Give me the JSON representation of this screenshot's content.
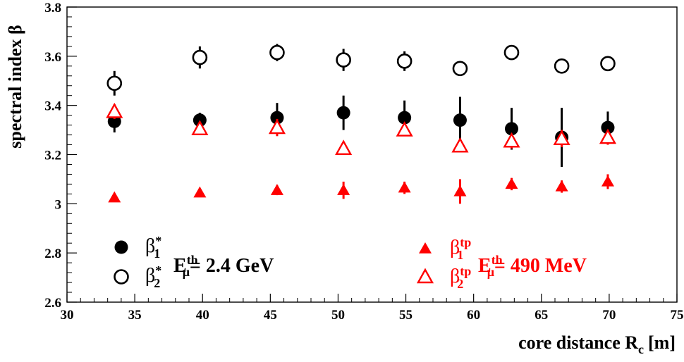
{
  "chart_data": {
    "type": "scatter",
    "xlabel": "core distance R",
    "xlabel_sub": "c",
    "xlabel_unit": "[m]",
    "ylabel": "spectral index β",
    "xlim": [
      30,
      75
    ],
    "ylim": [
      2.6,
      3.8
    ],
    "x_ticks": [
      30,
      35,
      40,
      45,
      50,
      55,
      60,
      65,
      70,
      75
    ],
    "y_ticks": [
      2.6,
      2.8,
      3,
      3.2,
      3.4,
      3.6,
      3.8
    ],
    "y_tick_labels": [
      "2.6",
      "2.8",
      "3",
      "3.2",
      "3.4",
      "3.6",
      "3.8"
    ],
    "grid": false,
    "legend_placement": "bottom",
    "colors": {
      "black": "#000000",
      "red": "#ff0000"
    },
    "series": [
      {
        "sym": "β",
        "sup": "*",
        "sub": "1",
        "marker": "filled-circle",
        "color": "#000000",
        "points": [
          {
            "x": 33.5,
            "y": 3.335,
            "err": 0.045
          },
          {
            "x": 39.8,
            "y": 3.34,
            "err": 0.03
          },
          {
            "x": 45.5,
            "y": 3.35,
            "err": 0.06
          },
          {
            "x": 50.4,
            "y": 3.37,
            "err": 0.07
          },
          {
            "x": 54.9,
            "y": 3.35,
            "err": 0.07
          },
          {
            "x": 59.0,
            "y": 3.34,
            "err": 0.095
          },
          {
            "x": 62.8,
            "y": 3.305,
            "err": 0.085
          },
          {
            "x": 66.5,
            "y": 3.27,
            "err": 0.12
          },
          {
            "x": 69.9,
            "y": 3.31,
            "err": 0.065
          }
        ]
      },
      {
        "sym": "β",
        "sup": "*",
        "sub": "2",
        "marker": "open-circle",
        "color": "#000000",
        "points": [
          {
            "x": 33.5,
            "y": 3.49,
            "err": 0.05
          },
          {
            "x": 39.8,
            "y": 3.595,
            "err": 0.045
          },
          {
            "x": 45.5,
            "y": 3.615,
            "err": 0.035
          },
          {
            "x": 50.4,
            "y": 3.585,
            "err": 0.045
          },
          {
            "x": 54.9,
            "y": 3.58,
            "err": 0.04
          },
          {
            "x": 59.0,
            "y": 3.55,
            "err": 0.03
          },
          {
            "x": 62.8,
            "y": 3.615,
            "err": 0.03
          },
          {
            "x": 66.5,
            "y": 3.56,
            "err": 0.025
          },
          {
            "x": 69.9,
            "y": 3.57,
            "err": 0.025
          }
        ]
      },
      {
        "sym": "β",
        "sup": "tp",
        "sub": "1",
        "marker": "filled-triangle",
        "color": "#ff0000",
        "points": [
          {
            "x": 33.5,
            "y": 3.025,
            "err": 0.01
          },
          {
            "x": 39.8,
            "y": 3.045,
            "err": 0.012
          },
          {
            "x": 45.5,
            "y": 3.055,
            "err": 0.02
          },
          {
            "x": 50.4,
            "y": 3.055,
            "err": 0.035
          },
          {
            "x": 54.9,
            "y": 3.065,
            "err": 0.025
          },
          {
            "x": 59.0,
            "y": 3.05,
            "err": 0.05
          },
          {
            "x": 62.8,
            "y": 3.08,
            "err": 0.025
          },
          {
            "x": 66.5,
            "y": 3.07,
            "err": 0.025
          },
          {
            "x": 69.9,
            "y": 3.09,
            "err": 0.03
          }
        ]
      },
      {
        "sym": "β",
        "sup": "tp",
        "sub": "2",
        "marker": "open-triangle",
        "color": "#ff0000",
        "points": [
          {
            "x": 33.5,
            "y": 3.375,
            "err": 0.03
          },
          {
            "x": 39.8,
            "y": 3.305,
            "err": 0.015
          },
          {
            "x": 45.5,
            "y": 3.31,
            "err": 0.035
          },
          {
            "x": 50.4,
            "y": 3.225,
            "err": 0.012
          },
          {
            "x": 54.9,
            "y": 3.3,
            "err": 0.02
          },
          {
            "x": 59.0,
            "y": 3.235,
            "err": 0.025
          },
          {
            "x": 62.8,
            "y": 3.255,
            "err": 0.03
          },
          {
            "x": 66.5,
            "y": 3.265,
            "err": 0.035
          },
          {
            "x": 69.9,
            "y": 3.27,
            "err": 0.03
          }
        ]
      }
    ],
    "legend_groups": [
      {
        "label": "E",
        "sup": "th",
        "sub": "μ",
        "text": "= 2.4 GeV",
        "color": "#000000",
        "series": [
          0,
          1
        ]
      },
      {
        "label": "E",
        "sup": "th",
        "sub": "μ",
        "text": "= 490 MeV",
        "color": "#ff0000",
        "series": [
          2,
          3
        ]
      }
    ]
  }
}
